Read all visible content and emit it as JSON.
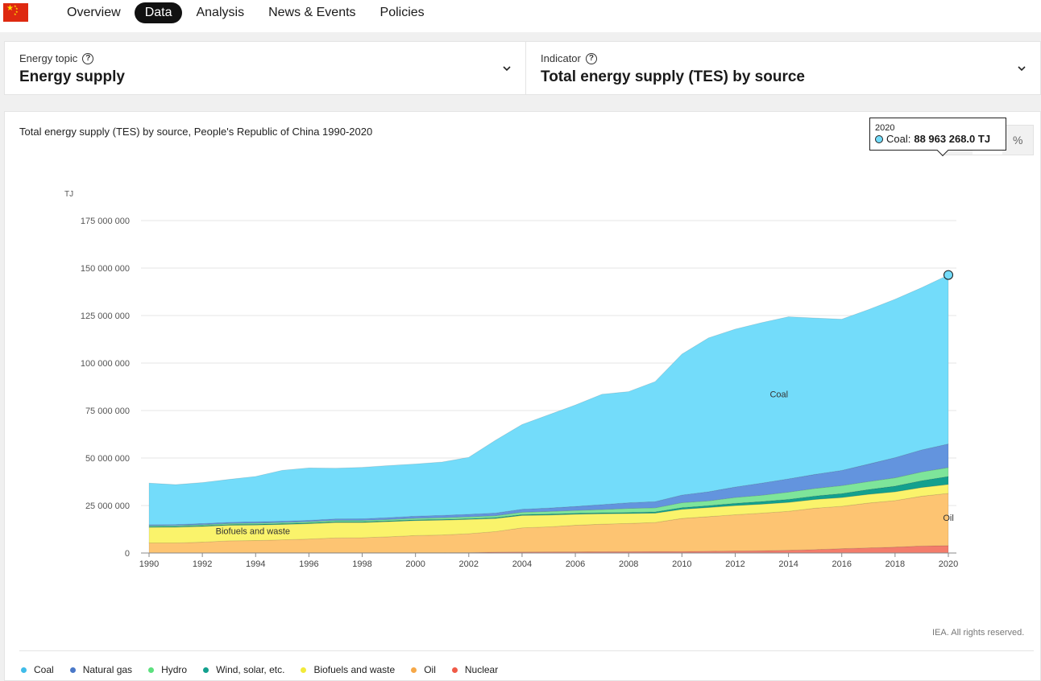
{
  "nav": {
    "items": [
      {
        "label": "Overview",
        "active": false
      },
      {
        "label": "Data",
        "active": true
      },
      {
        "label": "Analysis",
        "active": false
      },
      {
        "label": "News & Events",
        "active": false
      },
      {
        "label": "Policies",
        "active": false
      }
    ]
  },
  "selectors": {
    "topic": {
      "label": "Energy topic",
      "value": "Energy supply"
    },
    "indicator": {
      "label": "Indicator",
      "value": "Total energy supply (TES) by source"
    }
  },
  "view_toggles": [
    "line-chart-icon",
    "area-chart-icon",
    "percent-icon"
  ],
  "tooltip": {
    "year": "2020",
    "series": "Coal:",
    "value": "88 963 268.0 TJ",
    "color": "#73DCFA"
  },
  "copyright": "IEA. All rights reserved.",
  "chart_data": {
    "type": "area",
    "title": "Total energy supply (TES) by source, People's Republic of China 1990-2020",
    "ylabel": "TJ",
    "xlabel": "",
    "stacked": true,
    "ylim": [
      0,
      175000000
    ],
    "yticks": [
      0,
      25000000,
      50000000,
      75000000,
      100000000,
      125000000,
      150000000,
      175000000
    ],
    "ytick_labels": [
      "0",
      "25 000 000",
      "50 000 000",
      "75 000 000",
      "100 000 000",
      "125 000 000",
      "150 000 000",
      "175 000 000"
    ],
    "xticks": [
      1990,
      1992,
      1994,
      1996,
      1998,
      2000,
      2002,
      2004,
      2006,
      2008,
      2010,
      2012,
      2014,
      2016,
      2018,
      2020
    ],
    "x": [
      1990,
      1991,
      1992,
      1993,
      1994,
      1995,
      1996,
      1997,
      1998,
      1999,
      2000,
      2001,
      2002,
      2003,
      2004,
      2005,
      2006,
      2007,
      2008,
      2009,
      2010,
      2011,
      2012,
      2013,
      2014,
      2015,
      2016,
      2017,
      2018,
      2019,
      2020
    ],
    "grid": true,
    "legend_position": "bottom",
    "series": [
      {
        "name": "Nuclear",
        "color": "#F37C6B",
        "values": [
          0,
          0,
          0,
          100000,
          150000,
          150000,
          150000,
          150000,
          150000,
          150000,
          180000,
          200000,
          280000,
          480000,
          550000,
          580000,
          600000,
          680000,
          750000,
          770000,
          800000,
          950000,
          1050000,
          1200000,
          1450000,
          1800000,
          2300000,
          2700000,
          3100000,
          3700000,
          3900000
        ]
      },
      {
        "name": "Oil",
        "color": "#FDC472",
        "values": [
          5300000,
          5300000,
          5700000,
          6300000,
          6400000,
          6800000,
          7200000,
          7800000,
          7900000,
          8400000,
          9000000,
          9300000,
          9900000,
          10800000,
          12700000,
          13200000,
          14000000,
          14500000,
          14800000,
          15300000,
          17400000,
          18200000,
          19100000,
          19800000,
          20500000,
          21800000,
          22300000,
          23600000,
          24500000,
          26200000,
          27500000
        ]
      },
      {
        "name": "Biofuels and waste",
        "color": "#FAF36B",
        "values": [
          8200000,
          8300000,
          8300000,
          8200000,
          8200000,
          8100000,
          8100000,
          8100000,
          8000000,
          8000000,
          7900000,
          7800000,
          7500000,
          6900000,
          6500000,
          6200000,
          5800000,
          5500000,
          5200000,
          4900000,
          4800000,
          4800000,
          4800000,
          4700000,
          4700000,
          4600000,
          4600000,
          4600000,
          4600000,
          4600000,
          4700000
        ]
      },
      {
        "name": "Wind, solar, etc.",
        "color": "#13A08E",
        "values": [
          400000,
          400000,
          400000,
          400000,
          400000,
          400000,
          400000,
          400000,
          400000,
          400000,
          400000,
          400000,
          400000,
          450000,
          500000,
          500000,
          500000,
          500000,
          600000,
          700000,
          900000,
          1000000,
          1200000,
          1400000,
          1600000,
          1800000,
          2100000,
          2500000,
          3000000,
          3600000,
          4200000
        ]
      },
      {
        "name": "Hydro",
        "color": "#7EE59A",
        "values": [
          450000,
          450000,
          500000,
          550000,
          600000,
          650000,
          650000,
          700000,
          700000,
          700000,
          800000,
          900000,
          1000000,
          1000000,
          1200000,
          1400000,
          1500000,
          1700000,
          2100000,
          2100000,
          2600000,
          2500000,
          3100000,
          3300000,
          3800000,
          4000000,
          4200000,
          4200000,
          4400000,
          4600000,
          4700000
        ]
      },
      {
        "name": "Natural gas",
        "color": "#6394DE",
        "values": [
          550000,
          550000,
          600000,
          600000,
          650000,
          650000,
          700000,
          800000,
          850000,
          1000000,
          1100000,
          1200000,
          1300000,
          1400000,
          1600000,
          1800000,
          2100000,
          2600000,
          3000000,
          3300000,
          4000000,
          4800000,
          5500000,
          6400000,
          7000000,
          7400000,
          8000000,
          9200000,
          10600000,
          11600000,
          12400000
        ]
      },
      {
        "name": "Coal",
        "color": "#73DCFA",
        "values": [
          21900000,
          21000000,
          21600000,
          22600000,
          23900000,
          26800000,
          27600000,
          26700000,
          27100000,
          27400000,
          27500000,
          28100000,
          30000000,
          38300000,
          44600000,
          49100000,
          53400000,
          58100000,
          58500000,
          63200000,
          74200000,
          81000000,
          83100000,
          84500000,
          85300000,
          82300000,
          79600000,
          81300000,
          83400000,
          85400000,
          88963268
        ]
      }
    ],
    "annotations": [
      {
        "text": "Coal",
        "x": 2013.3,
        "y": 82000000
      },
      {
        "text": "Oil",
        "x": 2019.8,
        "y": 17000000
      },
      {
        "text": "Biofuels and waste",
        "x": 1992.5,
        "y": 10000000
      }
    ],
    "highlight": {
      "series": "Coal",
      "x": 2020
    }
  },
  "legend": [
    {
      "name": "Coal",
      "color": "#40BCE9"
    },
    {
      "name": "Natural gas",
      "color": "#4A78C8"
    },
    {
      "name": "Hydro",
      "color": "#5CE07E"
    },
    {
      "name": "Wind, solar, etc.",
      "color": "#13A08E"
    },
    {
      "name": "Biofuels and waste",
      "color": "#F2EA3A"
    },
    {
      "name": "Oil",
      "color": "#F6A848"
    },
    {
      "name": "Nuclear",
      "color": "#F05A47"
    }
  ]
}
